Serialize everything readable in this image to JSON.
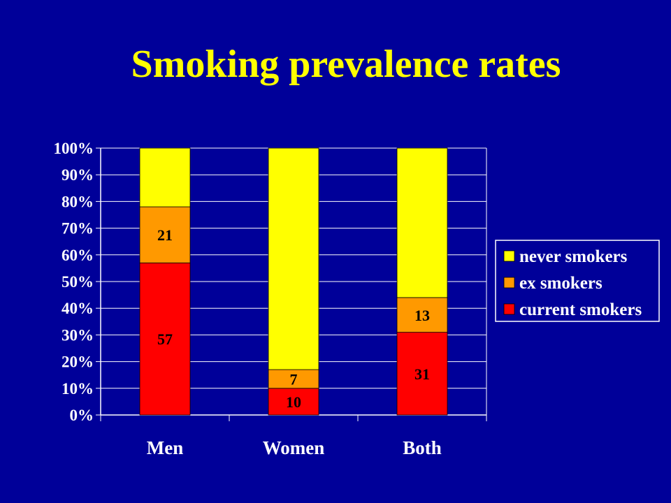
{
  "slide": {
    "title": "Smoking prevalence rates"
  },
  "chart_data": {
    "type": "bar",
    "stacked": true,
    "normalized": true,
    "categories": [
      "Men",
      "Women",
      "Both"
    ],
    "series": [
      {
        "name": "current smokers",
        "color": "#ff0000",
        "values": [
          57,
          10,
          31
        ],
        "labels": [
          "57",
          "10",
          "31"
        ]
      },
      {
        "name": "ex smokers",
        "color": "#ff9900",
        "values": [
          21,
          7,
          13
        ],
        "labels": [
          "21",
          "7",
          "13"
        ]
      },
      {
        "name": "never smokers",
        "color": "#ffff00",
        "values": [
          22,
          83,
          56
        ],
        "labels": [
          "",
          "",
          ""
        ]
      }
    ],
    "yticks": [
      "0%",
      "10%",
      "20%",
      "30%",
      "40%",
      "50%",
      "60%",
      "70%",
      "80%",
      "90%",
      "100%"
    ],
    "ylim": [
      0,
      100
    ],
    "grid": true,
    "legend": {
      "placement": "right",
      "order": [
        "never smokers",
        "ex smokers",
        "current smokers"
      ]
    }
  }
}
